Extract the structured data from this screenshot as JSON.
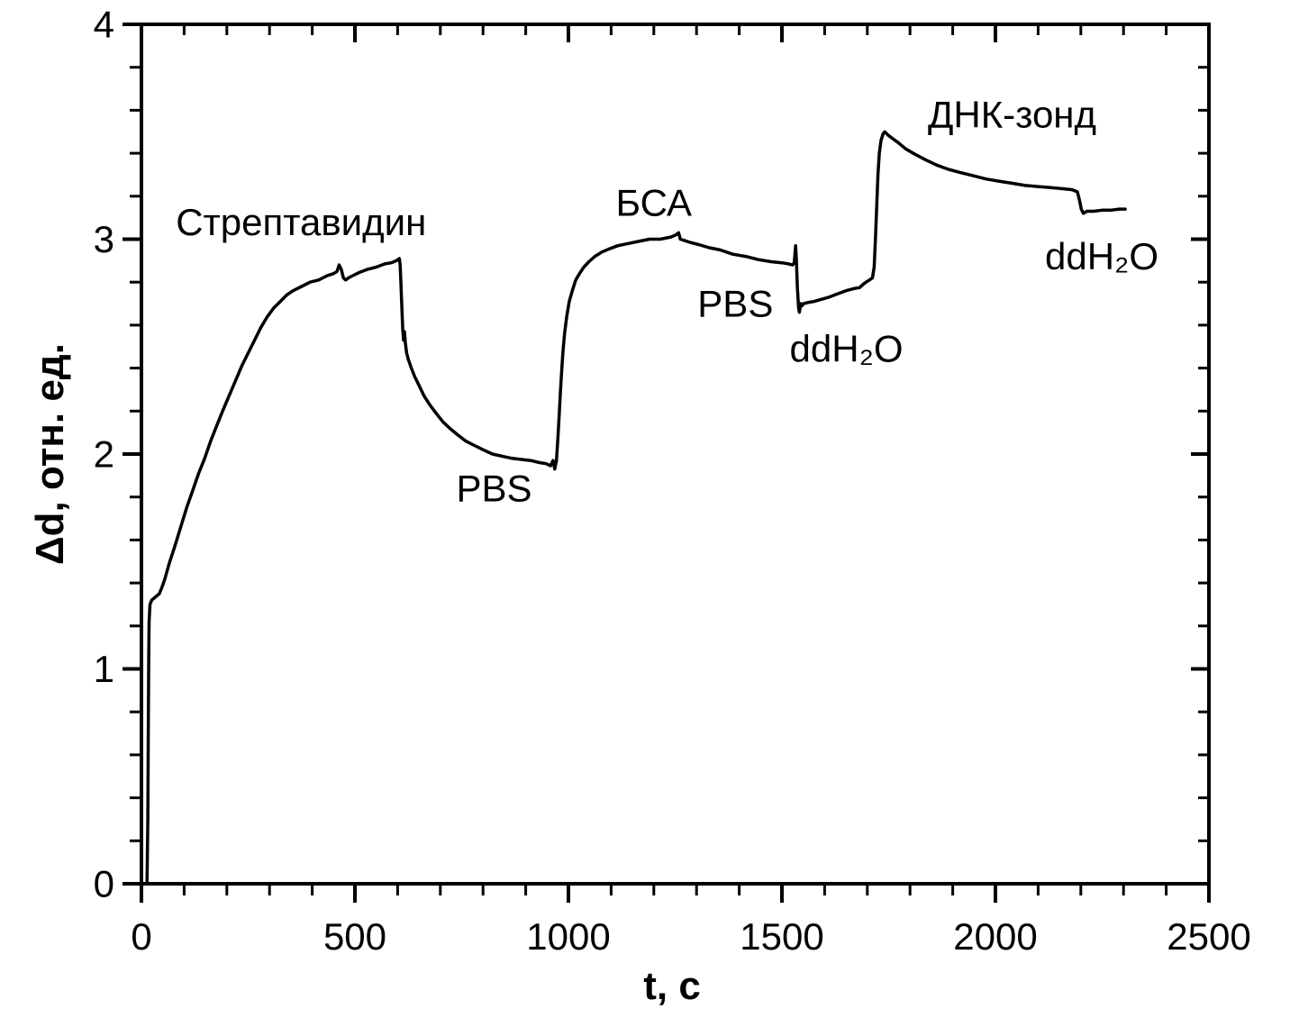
{
  "figure": {
    "background": "#ffffff",
    "foreground": "#000000"
  },
  "chart_data": {
    "type": "line",
    "title": "",
    "xlabel": "t, c",
    "ylabel": "Δd, отн. ед.",
    "xlim": [
      0,
      2500
    ],
    "ylim": [
      0,
      4
    ],
    "x_major_step": 500,
    "x_minor_step": 100,
    "y_major_step": 1,
    "y_minor_step": 0.2,
    "x_tick_labels": [
      "0",
      "500",
      "1000",
      "1500",
      "2000",
      "2500"
    ],
    "y_tick_labels": [
      "0",
      "1",
      "2",
      "3",
      "4"
    ],
    "grid": false,
    "legend": false,
    "line_color": "#000000",
    "series": [
      {
        "points": [
          [
            2,
            0
          ],
          [
            13,
            0
          ],
          [
            15,
            0.3
          ],
          [
            16,
            0.7
          ],
          [
            17,
            1.05
          ],
          [
            18,
            1.22
          ],
          [
            20,
            1.3
          ],
          [
            24,
            1.32
          ],
          [
            30,
            1.33
          ],
          [
            36,
            1.34
          ],
          [
            42,
            1.35
          ],
          [
            48,
            1.38
          ],
          [
            55,
            1.42
          ],
          [
            65,
            1.49
          ],
          [
            78,
            1.57
          ],
          [
            92,
            1.66
          ],
          [
            106,
            1.75
          ],
          [
            120,
            1.83
          ],
          [
            134,
            1.91
          ],
          [
            148,
            1.98
          ],
          [
            162,
            2.06
          ],
          [
            176,
            2.13
          ],
          [
            190,
            2.2
          ],
          [
            205,
            2.27
          ],
          [
            220,
            2.34
          ],
          [
            235,
            2.41
          ],
          [
            250,
            2.47
          ],
          [
            265,
            2.53
          ],
          [
            280,
            2.59
          ],
          [
            295,
            2.64
          ],
          [
            310,
            2.68
          ],
          [
            325,
            2.71
          ],
          [
            340,
            2.74
          ],
          [
            355,
            2.76
          ],
          [
            375,
            2.78
          ],
          [
            395,
            2.8
          ],
          [
            415,
            2.81
          ],
          [
            435,
            2.83
          ],
          [
            450,
            2.84
          ],
          [
            458,
            2.85
          ],
          [
            463,
            2.88
          ],
          [
            468,
            2.86
          ],
          [
            473,
            2.82
          ],
          [
            478,
            2.81
          ],
          [
            485,
            2.82
          ],
          [
            495,
            2.83
          ],
          [
            510,
            2.845
          ],
          [
            530,
            2.86
          ],
          [
            550,
            2.87
          ],
          [
            570,
            2.885
          ],
          [
            585,
            2.89
          ],
          [
            597,
            2.9
          ],
          [
            604,
            2.91
          ],
          [
            606,
            2.88
          ],
          [
            608,
            2.78
          ],
          [
            610,
            2.68
          ],
          [
            612,
            2.58
          ],
          [
            614,
            2.53
          ],
          [
            616,
            2.57
          ],
          [
            618,
            2.52
          ],
          [
            621,
            2.47
          ],
          [
            625,
            2.44
          ],
          [
            632,
            2.4
          ],
          [
            640,
            2.36
          ],
          [
            650,
            2.32
          ],
          [
            662,
            2.27
          ],
          [
            675,
            2.23
          ],
          [
            690,
            2.19
          ],
          [
            706,
            2.15
          ],
          [
            722,
            2.12
          ],
          [
            740,
            2.09
          ],
          [
            760,
            2.06
          ],
          [
            780,
            2.04
          ],
          [
            800,
            2.02
          ],
          [
            822,
            2.0
          ],
          [
            845,
            1.99
          ],
          [
            868,
            1.98
          ],
          [
            890,
            1.975
          ],
          [
            912,
            1.97
          ],
          [
            932,
            1.96
          ],
          [
            948,
            1.955
          ],
          [
            958,
            1.945
          ],
          [
            964,
            1.97
          ],
          [
            968,
            1.93
          ],
          [
            972,
            1.97
          ],
          [
            975,
            2.06
          ],
          [
            978,
            2.17
          ],
          [
            981,
            2.28
          ],
          [
            984,
            2.38
          ],
          [
            987,
            2.47
          ],
          [
            991,
            2.56
          ],
          [
            996,
            2.64
          ],
          [
            1002,
            2.71
          ],
          [
            1009,
            2.76
          ],
          [
            1017,
            2.81
          ],
          [
            1026,
            2.84
          ],
          [
            1036,
            2.87
          ],
          [
            1048,
            2.895
          ],
          [
            1062,
            2.92
          ],
          [
            1078,
            2.94
          ],
          [
            1096,
            2.955
          ],
          [
            1116,
            2.97
          ],
          [
            1140,
            2.98
          ],
          [
            1165,
            2.99
          ],
          [
            1190,
            3.0
          ],
          [
            1215,
            3.0
          ],
          [
            1240,
            3.01
          ],
          [
            1252,
            3.02
          ],
          [
            1258,
            3.03
          ],
          [
            1262,
            3.0
          ],
          [
            1270,
            2.995
          ],
          [
            1285,
            2.985
          ],
          [
            1305,
            2.975
          ],
          [
            1330,
            2.96
          ],
          [
            1355,
            2.95
          ],
          [
            1385,
            2.93
          ],
          [
            1415,
            2.92
          ],
          [
            1445,
            2.905
          ],
          [
            1475,
            2.895
          ],
          [
            1500,
            2.89
          ],
          [
            1515,
            2.885
          ],
          [
            1525,
            2.88
          ],
          [
            1529,
            2.89
          ],
          [
            1532,
            2.97
          ],
          [
            1534,
            2.9
          ],
          [
            1536,
            2.78
          ],
          [
            1539,
            2.68
          ],
          [
            1541,
            2.66
          ],
          [
            1544,
            2.7
          ],
          [
            1547,
            2.69
          ],
          [
            1551,
            2.7
          ],
          [
            1560,
            2.705
          ],
          [
            1575,
            2.71
          ],
          [
            1592,
            2.72
          ],
          [
            1610,
            2.73
          ],
          [
            1630,
            2.745
          ],
          [
            1650,
            2.76
          ],
          [
            1668,
            2.77
          ],
          [
            1682,
            2.775
          ],
          [
            1690,
            2.79
          ],
          [
            1697,
            2.8
          ],
          [
            1705,
            2.81
          ],
          [
            1712,
            2.82
          ],
          [
            1716,
            2.87
          ],
          [
            1719,
            3.0
          ],
          [
            1722,
            3.15
          ],
          [
            1725,
            3.3
          ],
          [
            1728,
            3.4
          ],
          [
            1732,
            3.46
          ],
          [
            1737,
            3.49
          ],
          [
            1741,
            3.5
          ],
          [
            1748,
            3.485
          ],
          [
            1758,
            3.47
          ],
          [
            1772,
            3.45
          ],
          [
            1790,
            3.42
          ],
          [
            1812,
            3.395
          ],
          [
            1836,
            3.37
          ],
          [
            1862,
            3.345
          ],
          [
            1890,
            3.325
          ],
          [
            1918,
            3.31
          ],
          [
            1948,
            3.295
          ],
          [
            1978,
            3.28
          ],
          [
            2008,
            3.27
          ],
          [
            2040,
            3.26
          ],
          [
            2070,
            3.25
          ],
          [
            2100,
            3.245
          ],
          [
            2130,
            3.24
          ],
          [
            2158,
            3.235
          ],
          [
            2180,
            3.23
          ],
          [
            2192,
            3.22
          ],
          [
            2197,
            3.18
          ],
          [
            2201,
            3.14
          ],
          [
            2206,
            3.12
          ],
          [
            2214,
            3.13
          ],
          [
            2230,
            3.13
          ],
          [
            2250,
            3.135
          ],
          [
            2270,
            3.135
          ],
          [
            2290,
            3.14
          ],
          [
            2304,
            3.14
          ]
        ]
      }
    ],
    "annotations": [
      {
        "name": "streptavidin-label",
        "text": "Стрептавидин",
        "t": 374,
        "v": 3.08
      },
      {
        "name": "pbs-label-1",
        "text": "PBS",
        "t": 826,
        "v": 1.84
      },
      {
        "name": "bsa-label",
        "text": "БСА",
        "t": 1200,
        "v": 3.17
      },
      {
        "name": "pbs-label-2",
        "text": "PBS",
        "t": 1391,
        "v": 2.7
      },
      {
        "name": "ddh2o-label-1",
        "text": "ddH₂O",
        "t": 1651,
        "v": 2.49
      },
      {
        "name": "dna-probe-label",
        "text": "ДНК-зонд",
        "t": 2039,
        "v": 3.58
      },
      {
        "name": "ddh2o-label-2",
        "text": "ddH₂O",
        "t": 2249,
        "v": 2.92
      }
    ]
  }
}
